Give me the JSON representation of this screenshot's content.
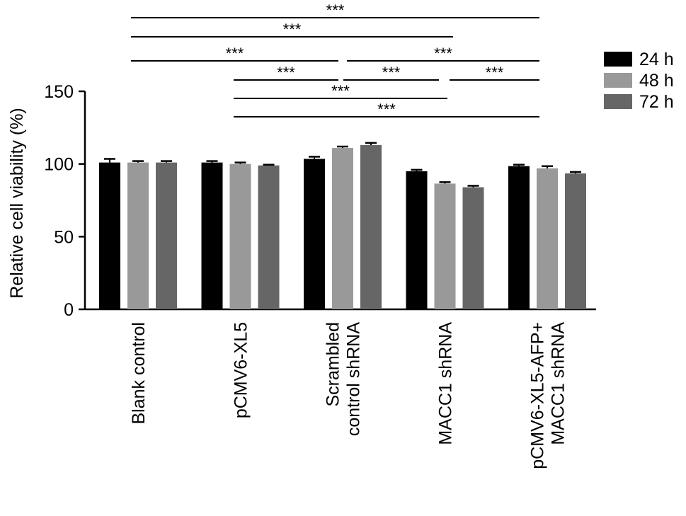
{
  "chart_data": {
    "type": "bar",
    "title": "",
    "xlabel": "",
    "ylabel": "Relative cell viability (%)",
    "ylim": [
      0,
      150
    ],
    "yticks": [
      0,
      50,
      100,
      150
    ],
    "grid": false,
    "legend_position": "top-right",
    "categories": [
      [
        "Blank control"
      ],
      [
        "pCMV6-XL5"
      ],
      [
        "Scrambled",
        "control shRNA"
      ],
      [
        "MACC1 shRNA"
      ],
      [
        "pCMV6-XL5-AFP+",
        "MACC1 shRNA"
      ]
    ],
    "series": [
      {
        "name": "24 h",
        "color": "#000000",
        "values": [
          101,
          101,
          103.5,
          95,
          98.5
        ],
        "errors": [
          2.5,
          1,
          1.5,
          1,
          1
        ]
      },
      {
        "name": "48 h",
        "color": "#999999",
        "values": [
          101,
          100,
          111,
          86.5,
          97
        ],
        "errors": [
          1,
          1,
          1,
          1,
          1.5
        ]
      },
      {
        "name": "72 h",
        "color": "#666666",
        "values": [
          101,
          99,
          113,
          84,
          93.5
        ],
        "errors": [
          1,
          0.5,
          1.5,
          1,
          1
        ]
      }
    ],
    "significance": [
      {
        "from": 0,
        "to": 4,
        "label": "***"
      },
      {
        "from": 0,
        "to": 3,
        "label": "***"
      },
      {
        "from": 0,
        "to": 2,
        "label": "***"
      },
      {
        "from": 2,
        "to": 4,
        "label": "***"
      },
      {
        "from": 1,
        "to": 2,
        "label": "***"
      },
      {
        "from": 2,
        "to": 3,
        "label": "***"
      },
      {
        "from": 3,
        "to": 4,
        "label": "***"
      },
      {
        "from": 1,
        "to": 3,
        "label": "***"
      },
      {
        "from": 1,
        "to": 4,
        "label": "***"
      }
    ]
  }
}
